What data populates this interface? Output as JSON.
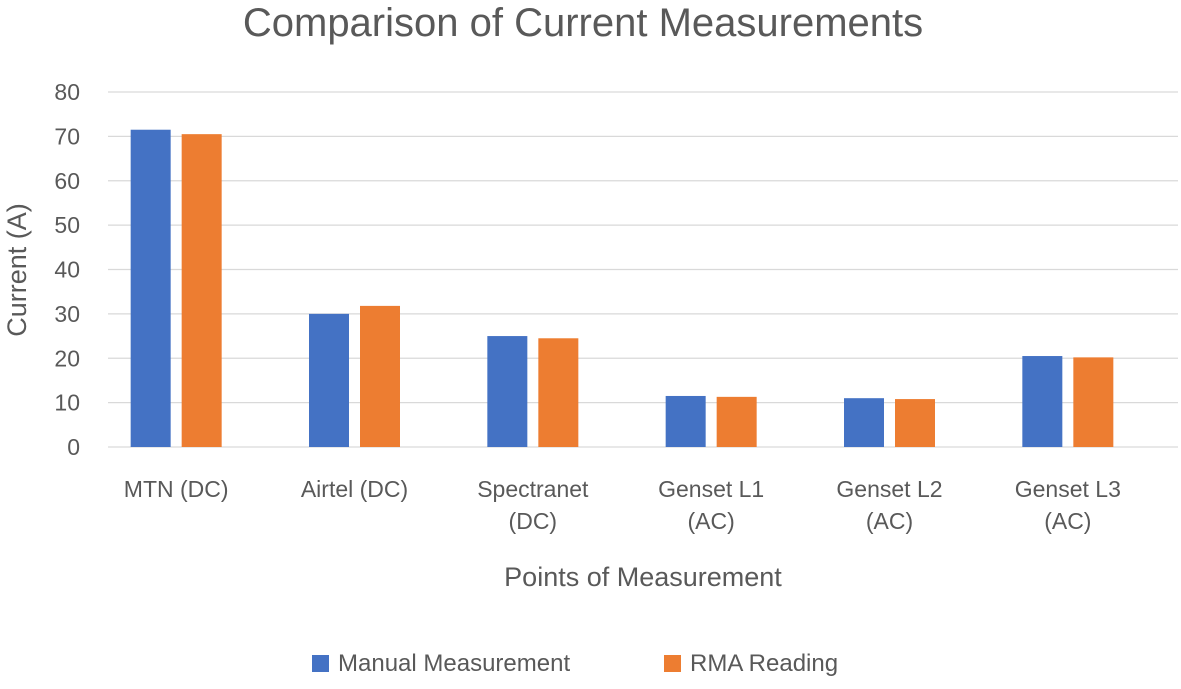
{
  "chart_data": {
    "type": "bar",
    "title": "Comparison of Current Measurements",
    "xlabel": "Points of Measurement",
    "ylabel": "Current (A)",
    "ylim": [
      0,
      80
    ],
    "yticks": [
      0,
      10,
      20,
      30,
      40,
      50,
      60,
      70,
      80
    ],
    "grid": true,
    "legend_position": "bottom",
    "categories": [
      [
        "MTN (DC)"
      ],
      [
        "Airtel (DC)"
      ],
      [
        "Spectranet",
        "(DC)"
      ],
      [
        "Genset L1",
        "(AC)"
      ],
      [
        "Genset L2",
        "(AC)"
      ],
      [
        "Genset L3",
        "(AC)"
      ]
    ],
    "series": [
      {
        "name": "Manual Measurement",
        "color": "#4472C4",
        "values": [
          71.5,
          30.0,
          25.0,
          11.5,
          11.0,
          20.5
        ]
      },
      {
        "name": "RMA Reading",
        "color": "#ED7D31",
        "values": [
          70.5,
          31.8,
          24.5,
          11.3,
          10.8,
          20.2
        ]
      }
    ]
  }
}
